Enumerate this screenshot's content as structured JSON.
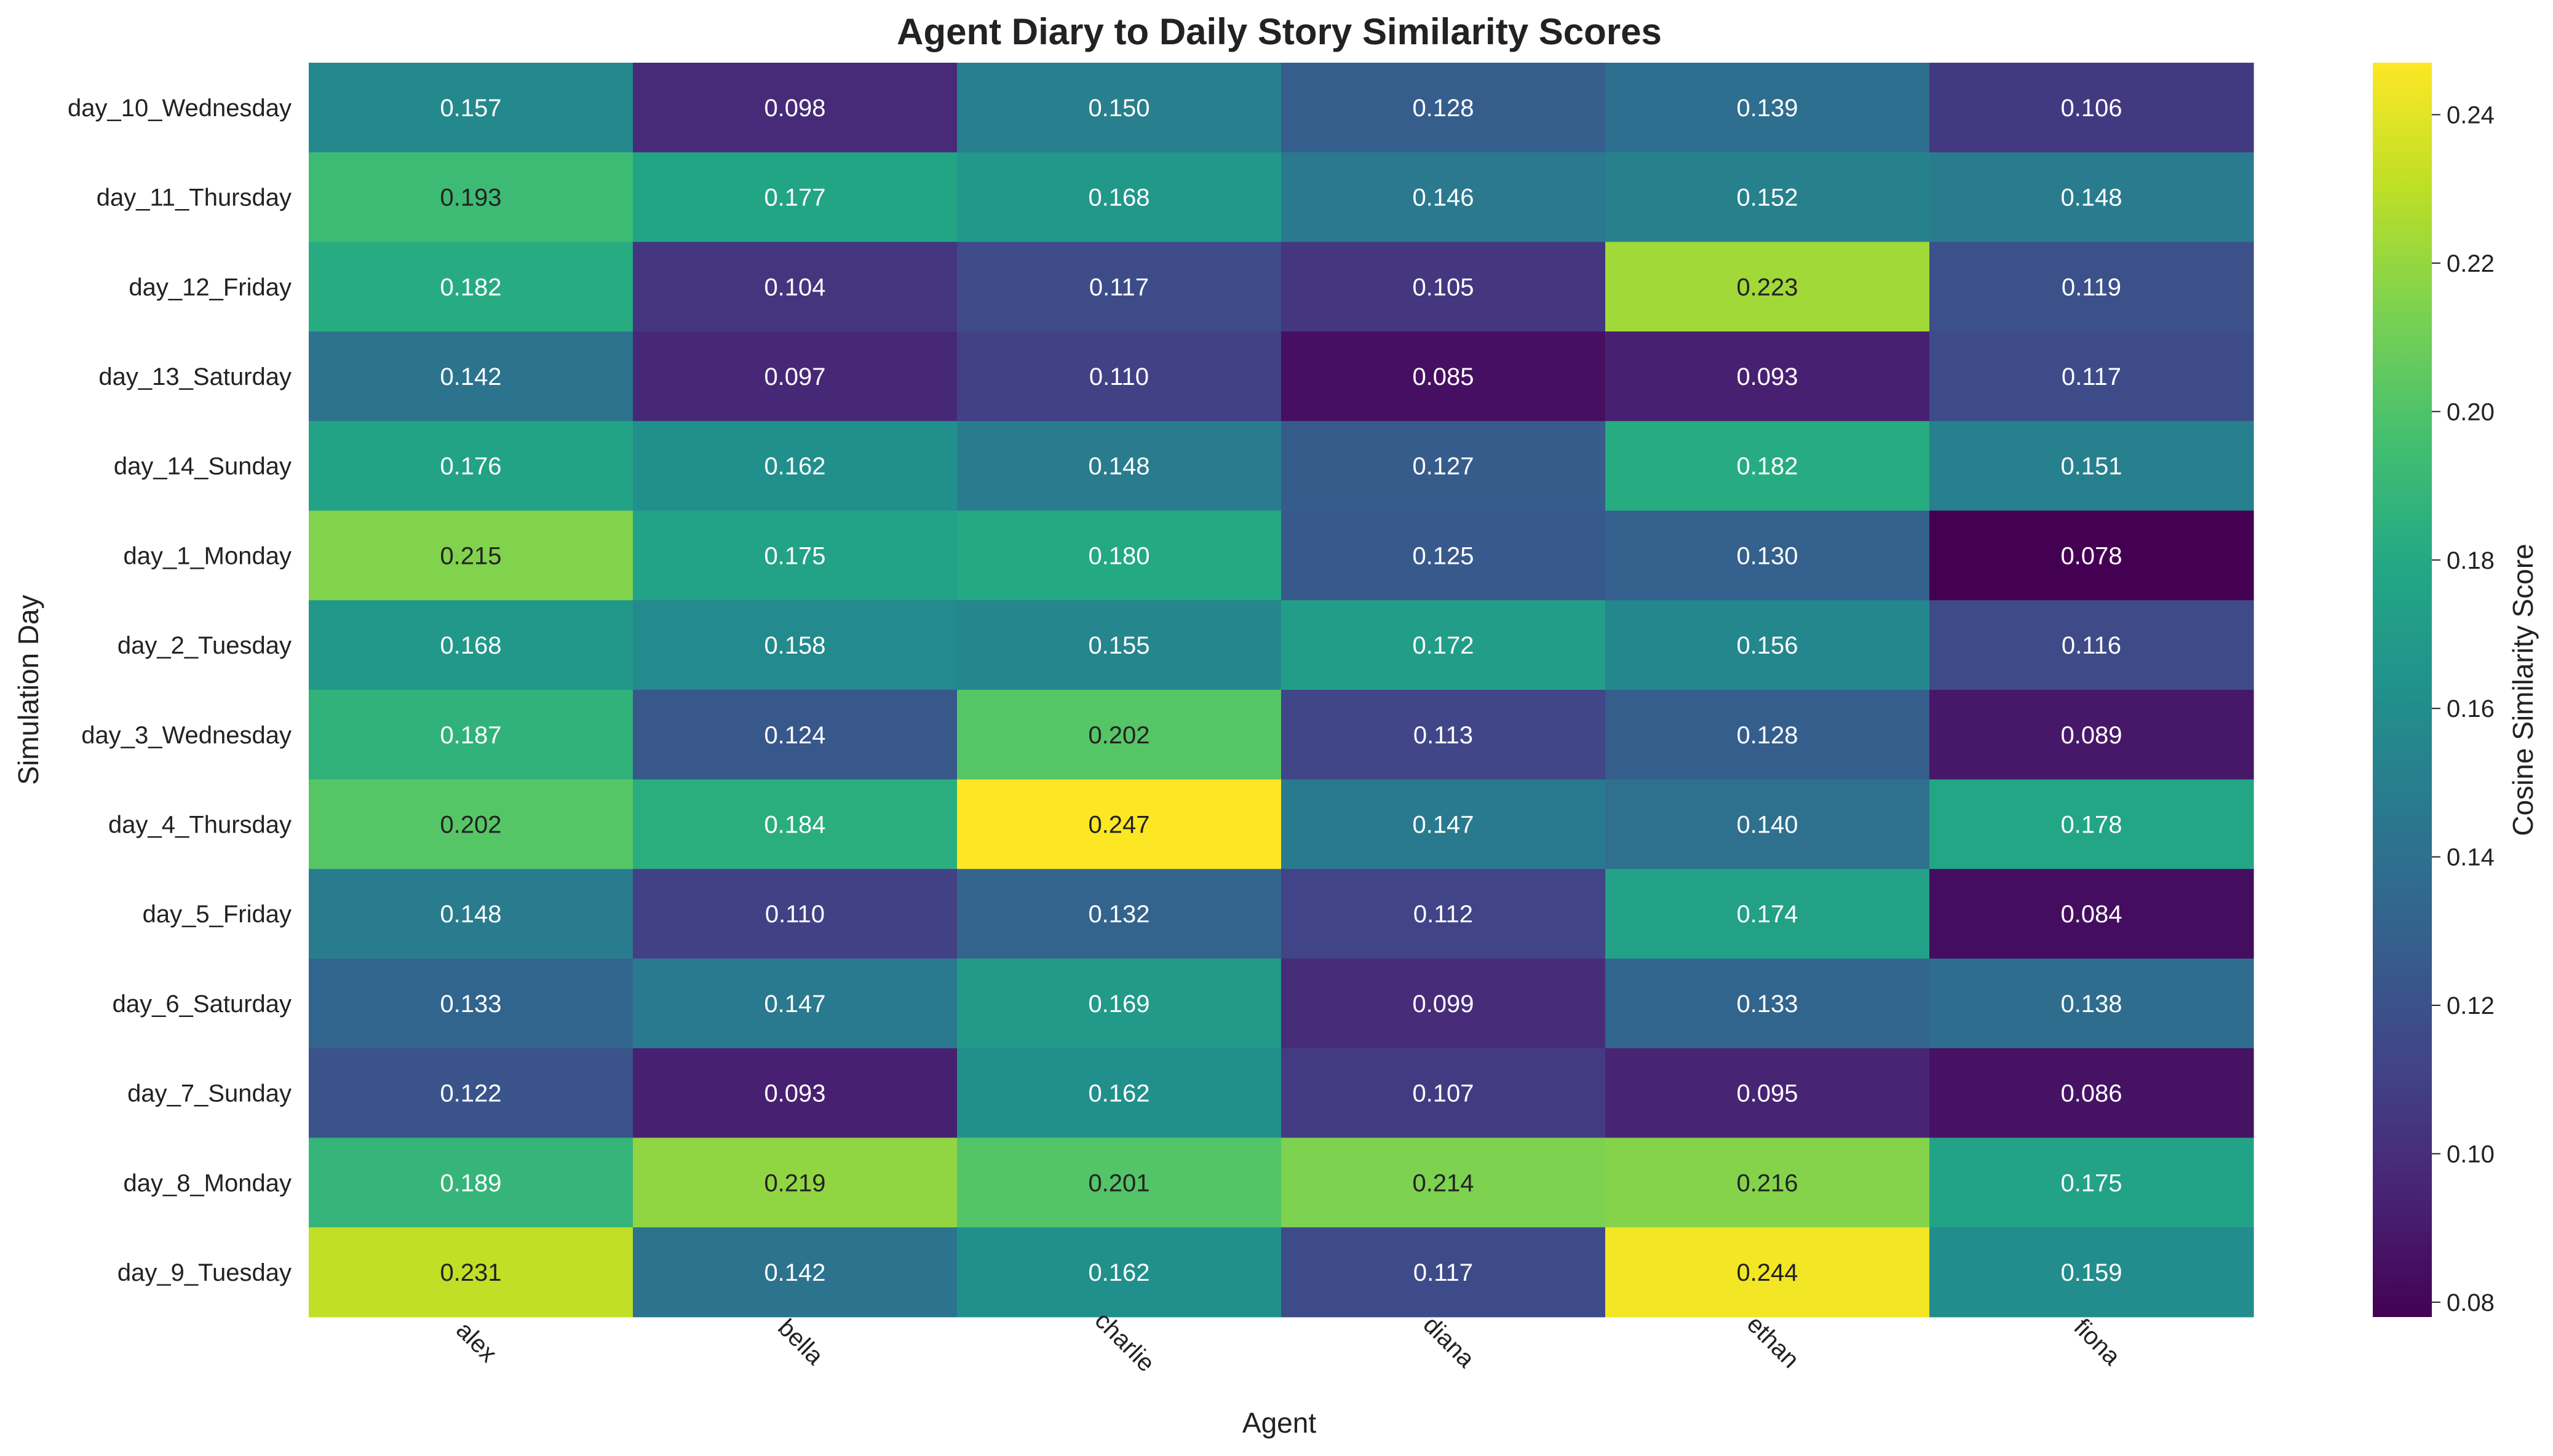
{
  "chart_data": {
    "type": "heatmap",
    "title": "Agent Diary to Daily Story Similarity Scores",
    "xlabel": "Agent",
    "ylabel": "Simulation Day",
    "colorbar_label": "Cosine Similarity Score",
    "colormap": "viridis",
    "x_categories": [
      "alex",
      "bella",
      "charlie",
      "diana",
      "ethan",
      "fiona"
    ],
    "y_categories": [
      "day_10_Wednesday",
      "day_11_Thursday",
      "day_12_Friday",
      "day_13_Saturday",
      "day_14_Sunday",
      "day_1_Monday",
      "day_2_Tuesday",
      "day_3_Wednesday",
      "day_4_Thursday",
      "day_5_Friday",
      "day_6_Saturday",
      "day_7_Sunday",
      "day_8_Monday",
      "day_9_Tuesday"
    ],
    "values": [
      [
        0.157,
        0.098,
        0.15,
        0.128,
        0.139,
        0.106
      ],
      [
        0.193,
        0.177,
        0.168,
        0.146,
        0.152,
        0.148
      ],
      [
        0.182,
        0.104,
        0.117,
        0.105,
        0.223,
        0.119
      ],
      [
        0.142,
        0.097,
        0.11,
        0.085,
        0.093,
        0.117
      ],
      [
        0.176,
        0.162,
        0.148,
        0.127,
        0.182,
        0.151
      ],
      [
        0.215,
        0.175,
        0.18,
        0.125,
        0.13,
        0.078
      ],
      [
        0.168,
        0.158,
        0.155,
        0.172,
        0.156,
        0.116
      ],
      [
        0.187,
        0.124,
        0.202,
        0.113,
        0.128,
        0.089
      ],
      [
        0.202,
        0.184,
        0.247,
        0.147,
        0.14,
        0.178
      ],
      [
        0.148,
        0.11,
        0.132,
        0.112,
        0.174,
        0.084
      ],
      [
        0.133,
        0.147,
        0.169,
        0.099,
        0.133,
        0.138
      ],
      [
        0.122,
        0.093,
        0.162,
        0.107,
        0.095,
        0.086
      ],
      [
        0.189,
        0.219,
        0.201,
        0.214,
        0.216,
        0.175
      ],
      [
        0.231,
        0.142,
        0.162,
        0.117,
        0.244,
        0.159
      ]
    ],
    "vmin": 0.078,
    "vmax": 0.247,
    "colorbar_ticks": [
      0.08,
      0.1,
      0.12,
      0.14,
      0.16,
      0.18,
      0.2,
      0.22,
      0.24
    ],
    "colorbar_tick_labels": [
      "0.08",
      "0.10",
      "0.12",
      "0.14",
      "0.16",
      "0.18",
      "0.20",
      "0.22",
      "0.24"
    ],
    "value_format_decimals": 3
  }
}
